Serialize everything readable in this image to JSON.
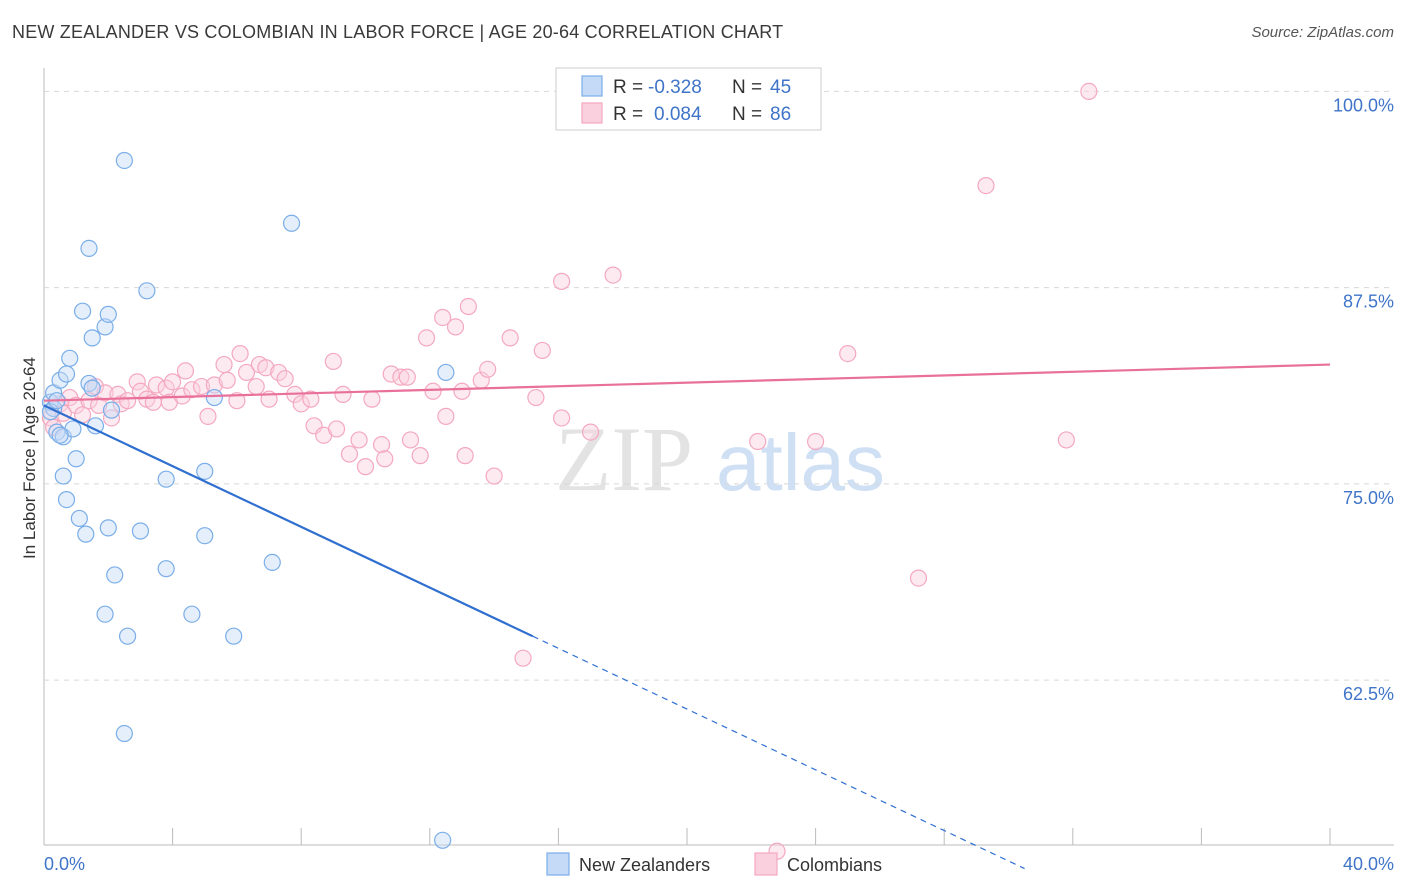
{
  "title": "NEW ZEALANDER VS COLOMBIAN IN LABOR FORCE | AGE 20-64 CORRELATION CHART",
  "source": "Source: ZipAtlas.com",
  "chart_data": {
    "type": "scatter",
    "title": "NEW ZEALANDER VS COLOMBIAN IN LABOR FORCE | AGE 20-64 CORRELATION CHART",
    "xlabel": "",
    "ylabel": "In Labor Force | Age 20-64",
    "xlim": [
      0,
      40
    ],
    "ylim": [
      52,
      102
    ],
    "x_tick_labels": [
      "0.0%",
      "40.0%"
    ],
    "y_ticks": [
      62.5,
      75.0,
      87.5,
      100.0
    ],
    "y_tick_labels": [
      "62.5%",
      "75.0%",
      "87.5%",
      "100.0%"
    ],
    "grid": true,
    "watermark": {
      "part1": "ZIP",
      "part2": "atlas"
    },
    "legend": {
      "position": "top-center",
      "r_label": "R =",
      "n_label": "N =",
      "entries": [
        {
          "r": "-0.328",
          "n": "45"
        },
        {
          "r": "0.084",
          "n": "86"
        }
      ]
    },
    "series": [
      {
        "name": "New Zealanders",
        "color": "#7aaee8",
        "line_color": "#2f6fd0",
        "trend": {
          "x_start": 0.0,
          "y_start": 80.0,
          "x_end": 15.2,
          "y_end": 65.3,
          "dash_x_end": 30.5,
          "dash_y_end": 50.5
        },
        "points": [
          [
            0.2,
            80.2
          ],
          [
            0.3,
            79.8
          ],
          [
            0.3,
            80.8
          ],
          [
            0.4,
            78.3
          ],
          [
            0.5,
            81.6
          ],
          [
            0.6,
            78.0
          ],
          [
            0.6,
            75.5
          ],
          [
            0.7,
            82.0
          ],
          [
            0.7,
            74.0
          ],
          [
            0.8,
            83.0
          ],
          [
            0.9,
            78.5
          ],
          [
            1.0,
            76.6
          ],
          [
            1.1,
            72.8
          ],
          [
            1.2,
            86.0
          ],
          [
            1.3,
            71.8
          ],
          [
            1.4,
            90.0
          ],
          [
            1.4,
            81.4
          ],
          [
            1.5,
            84.3
          ],
          [
            1.6,
            78.7
          ],
          [
            1.9,
            85.0
          ],
          [
            1.9,
            66.7
          ],
          [
            2.0,
            85.8
          ],
          [
            2.0,
            72.2
          ],
          [
            2.1,
            79.7
          ],
          [
            2.2,
            69.2
          ],
          [
            2.5,
            95.6
          ],
          [
            2.5,
            59.1
          ],
          [
            2.6,
            65.3
          ],
          [
            3.0,
            72.0
          ],
          [
            3.2,
            87.3
          ],
          [
            3.8,
            75.3
          ],
          [
            3.8,
            69.6
          ],
          [
            4.6,
            66.7
          ],
          [
            5.0,
            75.8
          ],
          [
            5.0,
            71.7
          ],
          [
            5.3,
            80.5
          ],
          [
            5.9,
            65.3
          ],
          [
            7.1,
            70.0
          ],
          [
            7.7,
            91.6
          ],
          [
            12.5,
            82.1
          ],
          [
            12.4,
            52.3
          ],
          [
            0.2,
            79.6
          ],
          [
            0.4,
            80.3
          ],
          [
            0.5,
            78.1
          ],
          [
            1.5,
            81.1
          ]
        ]
      },
      {
        "name": "Colombians",
        "color": "#f4a8c0",
        "line_color": "#e8709a",
        "trend": {
          "x_start": 0.0,
          "y_start": 80.3,
          "x_end": 40.0,
          "y_end": 82.6
        },
        "points": [
          [
            0.2,
            79.2
          ],
          [
            0.3,
            78.6
          ],
          [
            0.5,
            80.1
          ],
          [
            0.6,
            79.5
          ],
          [
            0.8,
            80.5
          ],
          [
            1.0,
            80.0
          ],
          [
            1.2,
            79.4
          ],
          [
            1.4,
            80.3
          ],
          [
            1.6,
            81.2
          ],
          [
            1.7,
            80.0
          ],
          [
            1.9,
            80.8
          ],
          [
            2.1,
            79.2
          ],
          [
            2.3,
            80.7
          ],
          [
            2.4,
            80.1
          ],
          [
            2.6,
            80.3
          ],
          [
            2.9,
            81.5
          ],
          [
            3.0,
            80.9
          ],
          [
            3.2,
            80.4
          ],
          [
            3.4,
            80.2
          ],
          [
            3.5,
            81.3
          ],
          [
            3.8,
            81.1
          ],
          [
            3.9,
            80.2
          ],
          [
            4.0,
            81.5
          ],
          [
            4.3,
            80.6
          ],
          [
            4.4,
            82.2
          ],
          [
            4.6,
            81.0
          ],
          [
            4.9,
            81.2
          ],
          [
            5.1,
            79.3
          ],
          [
            5.3,
            81.3
          ],
          [
            5.6,
            82.6
          ],
          [
            5.7,
            81.6
          ],
          [
            6.0,
            80.3
          ],
          [
            6.1,
            83.3
          ],
          [
            6.3,
            82.1
          ],
          [
            6.6,
            81.2
          ],
          [
            6.7,
            82.6
          ],
          [
            6.9,
            82.4
          ],
          [
            7.0,
            80.4
          ],
          [
            7.3,
            82.1
          ],
          [
            7.5,
            81.7
          ],
          [
            7.8,
            80.7
          ],
          [
            8.0,
            80.1
          ],
          [
            8.3,
            80.4
          ],
          [
            8.4,
            78.7
          ],
          [
            8.7,
            78.1
          ],
          [
            9.0,
            82.8
          ],
          [
            9.1,
            78.5
          ],
          [
            9.3,
            80.7
          ],
          [
            9.5,
            76.9
          ],
          [
            9.8,
            77.8
          ],
          [
            10.0,
            76.1
          ],
          [
            10.2,
            80.4
          ],
          [
            10.5,
            77.5
          ],
          [
            10.6,
            76.6
          ],
          [
            10.8,
            82.0
          ],
          [
            11.1,
            81.8
          ],
          [
            11.3,
            81.8
          ],
          [
            11.4,
            77.8
          ],
          [
            11.7,
            76.8
          ],
          [
            11.9,
            84.3
          ],
          [
            12.1,
            80.9
          ],
          [
            12.4,
            85.6
          ],
          [
            12.5,
            79.3
          ],
          [
            12.8,
            85.0
          ],
          [
            13.0,
            80.9
          ],
          [
            13.1,
            76.8
          ],
          [
            13.2,
            86.3
          ],
          [
            13.6,
            81.6
          ],
          [
            13.8,
            82.3
          ],
          [
            14.0,
            75.5
          ],
          [
            14.5,
            84.3
          ],
          [
            14.9,
            63.9
          ],
          [
            15.3,
            80.5
          ],
          [
            15.5,
            83.5
          ],
          [
            16.1,
            87.9
          ],
          [
            16.1,
            79.2
          ],
          [
            17.0,
            78.3
          ],
          [
            17.7,
            88.3
          ],
          [
            22.2,
            77.7
          ],
          [
            22.8,
            51.6
          ],
          [
            24.0,
            77.7
          ],
          [
            25.0,
            83.3
          ],
          [
            27.2,
            69.0
          ],
          [
            29.3,
            94.0
          ],
          [
            31.8,
            77.8
          ],
          [
            32.5,
            100.0
          ]
        ]
      }
    ]
  }
}
